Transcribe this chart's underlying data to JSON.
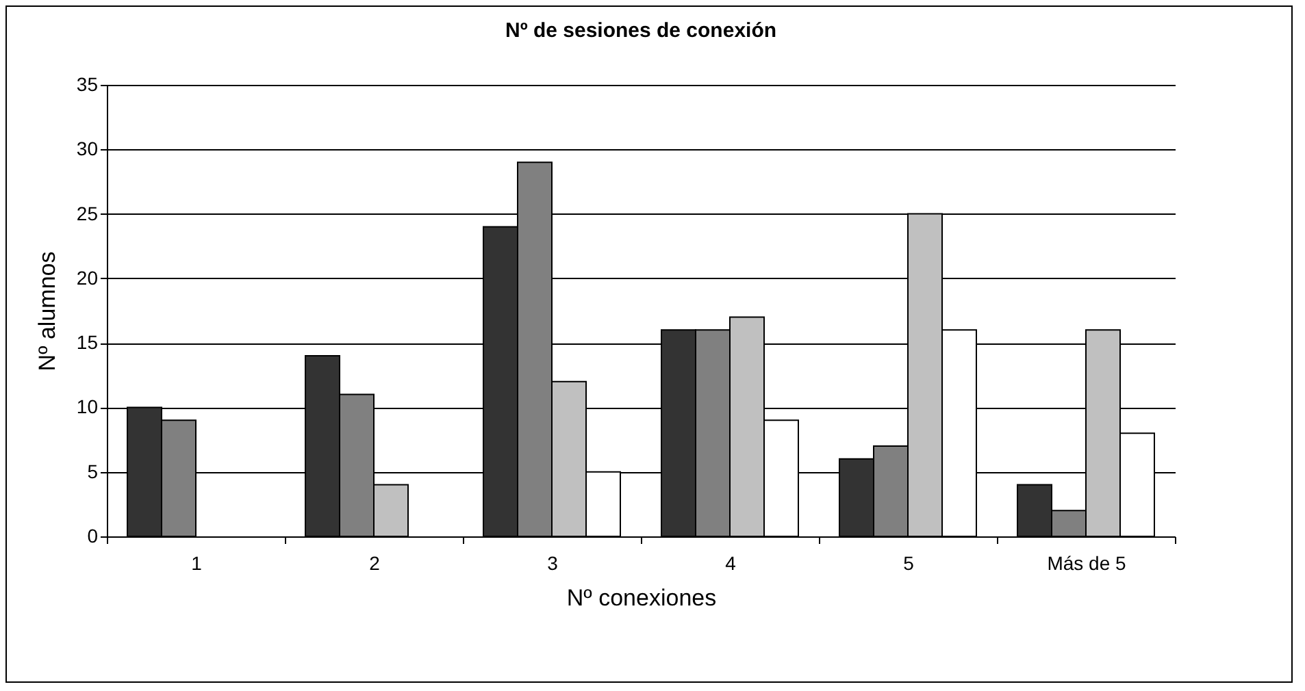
{
  "chart_data": {
    "type": "bar",
    "title": "Nº de sesiones de conexión",
    "xlabel": "Nº conexiones",
    "ylabel": "Nº alumnos",
    "categories": [
      "1",
      "2",
      "3",
      "4",
      "5",
      "Más de 5"
    ],
    "series": [
      {
        "color": "#333333",
        "values": [
          10,
          14,
          24,
          16,
          6,
          4
        ]
      },
      {
        "color": "#808080",
        "values": [
          9,
          11,
          29,
          16,
          7,
          2
        ]
      },
      {
        "color": "#c0c0c0",
        "values": [
          0,
          4,
          12,
          17,
          25,
          16
        ]
      },
      {
        "color": "#ffffff",
        "values": [
          0,
          0,
          5,
          9,
          16,
          8
        ]
      }
    ],
    "ylim": [
      0,
      35
    ],
    "yticks": [
      0,
      5,
      10,
      15,
      20,
      25,
      30,
      35
    ],
    "grid": "y",
    "legend": false
  }
}
